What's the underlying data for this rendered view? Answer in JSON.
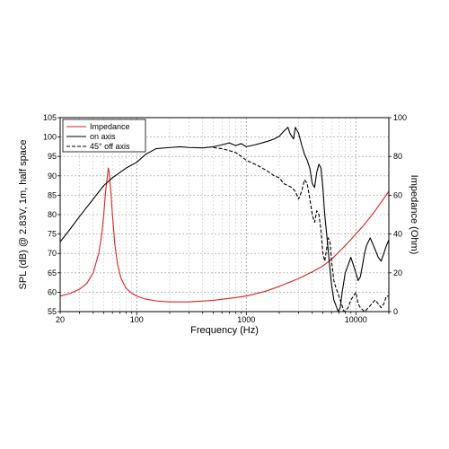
{
  "chart_data": {
    "type": "line",
    "xlabel": "Frequency (Hz)",
    "ylabel": "SPL (dB) @ 2.83V, 1m, half space",
    "y2label": "Impedance (Ohm)",
    "xscale": "log",
    "xlim": [
      20,
      20000
    ],
    "ylim": [
      55,
      105
    ],
    "y2lim": [
      0,
      100
    ],
    "grid": true,
    "legend_position": "top-left",
    "x_tick_labels": [
      "20",
      "100",
      "1000",
      "10000"
    ],
    "y_tick_labels": [
      "55",
      "60",
      "65",
      "70",
      "75",
      "80",
      "85",
      "90",
      "95",
      "100",
      "105"
    ],
    "y2_tick_labels": [
      "0",
      "20",
      "40",
      "60",
      "80",
      "100"
    ],
    "series": [
      {
        "name": "Impedance",
        "axis": "right",
        "color": "#d9261c",
        "dash": "solid",
        "points": [
          [
            20,
            8
          ],
          [
            25,
            9.5
          ],
          [
            30,
            11.5
          ],
          [
            35,
            14.5
          ],
          [
            40,
            20
          ],
          [
            45,
            30
          ],
          [
            48,
            40
          ],
          [
            50,
            50
          ],
          [
            52,
            62
          ],
          [
            54,
            70
          ],
          [
            55,
            74
          ],
          [
            56,
            72
          ],
          [
            58,
            62
          ],
          [
            60,
            50
          ],
          [
            63,
            35
          ],
          [
            67,
            24
          ],
          [
            72,
            17
          ],
          [
            80,
            12
          ],
          [
            90,
            9.5
          ],
          [
            100,
            8
          ],
          [
            120,
            6.5
          ],
          [
            150,
            5.5
          ],
          [
            200,
            5
          ],
          [
            300,
            5
          ],
          [
            500,
            5.8
          ],
          [
            700,
            6.8
          ],
          [
            1000,
            8
          ],
          [
            1500,
            10.5
          ],
          [
            2000,
            13
          ],
          [
            3000,
            17
          ],
          [
            4000,
            20.5
          ],
          [
            5000,
            23.5
          ],
          [
            6000,
            27
          ],
          [
            8000,
            34
          ],
          [
            10000,
            40
          ],
          [
            12000,
            45
          ],
          [
            15000,
            52
          ],
          [
            20000,
            62
          ]
        ]
      },
      {
        "name": "on axis",
        "axis": "left",
        "color": "#000000",
        "dash": "solid",
        "points": [
          [
            20,
            73
          ],
          [
            25,
            76.5
          ],
          [
            30,
            79.5
          ],
          [
            40,
            84
          ],
          [
            50,
            87.5
          ],
          [
            60,
            89.5
          ],
          [
            80,
            92
          ],
          [
            100,
            93.5
          ],
          [
            120,
            95.5
          ],
          [
            150,
            97
          ],
          [
            200,
            97.3
          ],
          [
            250,
            97.5
          ],
          [
            300,
            97.3
          ],
          [
            400,
            97.2
          ],
          [
            500,
            97.5
          ],
          [
            600,
            98
          ],
          [
            700,
            98.5
          ],
          [
            800,
            97.8
          ],
          [
            900,
            98.3
          ],
          [
            1000,
            97.5
          ],
          [
            1200,
            98
          ],
          [
            1400,
            98.5
          ],
          [
            1600,
            99
          ],
          [
            1800,
            99.5
          ],
          [
            2000,
            100.2
          ],
          [
            2200,
            101.5
          ],
          [
            2400,
            102.5
          ],
          [
            2500,
            101
          ],
          [
            2700,
            99.5
          ],
          [
            2800,
            102.5
          ],
          [
            3000,
            101
          ],
          [
            3200,
            98
          ],
          [
            3400,
            95.5
          ],
          [
            3600,
            94
          ],
          [
            3800,
            92
          ],
          [
            4000,
            88
          ],
          [
            4200,
            87
          ],
          [
            4400,
            91
          ],
          [
            4600,
            93
          ],
          [
            4800,
            92
          ],
          [
            5000,
            87
          ],
          [
            5200,
            80
          ],
          [
            5500,
            73
          ],
          [
            5800,
            66
          ],
          [
            6000,
            62
          ],
          [
            6300,
            58
          ],
          [
            6600,
            56.5
          ],
          [
            6900,
            55
          ],
          [
            7200,
            56
          ],
          [
            7500,
            60
          ],
          [
            8000,
            65
          ],
          [
            8500,
            67
          ],
          [
            9000,
            69
          ],
          [
            9500,
            67
          ],
          [
            10000,
            65
          ],
          [
            10500,
            63
          ],
          [
            11000,
            64
          ],
          [
            11500,
            67
          ],
          [
            12000,
            70
          ],
          [
            12500,
            72
          ],
          [
            13000,
            73
          ],
          [
            13500,
            74
          ],
          [
            14000,
            73
          ],
          [
            15000,
            71
          ],
          [
            16000,
            69
          ],
          [
            17000,
            68
          ],
          [
            18000,
            70
          ],
          [
            19000,
            72
          ],
          [
            20000,
            73.5
          ]
        ]
      },
      {
        "name": "45° off axis",
        "axis": "left",
        "color": "#000000",
        "dash": "dashed",
        "points": [
          [
            500,
            97.3
          ],
          [
            600,
            97
          ],
          [
            700,
            96.5
          ],
          [
            800,
            96
          ],
          [
            900,
            95
          ],
          [
            1000,
            94
          ],
          [
            1200,
            93
          ],
          [
            1400,
            92
          ],
          [
            1600,
            91
          ],
          [
            1800,
            90
          ],
          [
            2000,
            89.5
          ],
          [
            2200,
            88
          ],
          [
            2400,
            87.5
          ],
          [
            2600,
            87
          ],
          [
            2800,
            86
          ],
          [
            3000,
            84
          ],
          [
            3200,
            86
          ],
          [
            3400,
            89
          ],
          [
            3600,
            88
          ],
          [
            3800,
            84
          ],
          [
            4000,
            80
          ],
          [
            4200,
            78
          ],
          [
            4400,
            81
          ],
          [
            4600,
            80
          ],
          [
            4800,
            76
          ],
          [
            5000,
            70
          ],
          [
            5200,
            68
          ],
          [
            5400,
            71
          ],
          [
            5600,
            74
          ],
          [
            5800,
            73
          ],
          [
            6000,
            68
          ],
          [
            6300,
            63
          ],
          [
            6600,
            61
          ],
          [
            7000,
            59
          ],
          [
            7400,
            57
          ],
          [
            7800,
            55
          ],
          [
            8500,
            56
          ],
          [
            9000,
            58
          ],
          [
            9500,
            59
          ],
          [
            10000,
            60
          ],
          [
            10500,
            57
          ],
          [
            11000,
            56
          ],
          [
            12000,
            55
          ],
          [
            13000,
            56
          ],
          [
            14000,
            57
          ],
          [
            15000,
            58
          ],
          [
            16000,
            57
          ],
          [
            17000,
            56
          ],
          [
            18000,
            57
          ],
          [
            19000,
            59
          ],
          [
            20000,
            59
          ]
        ]
      }
    ]
  }
}
